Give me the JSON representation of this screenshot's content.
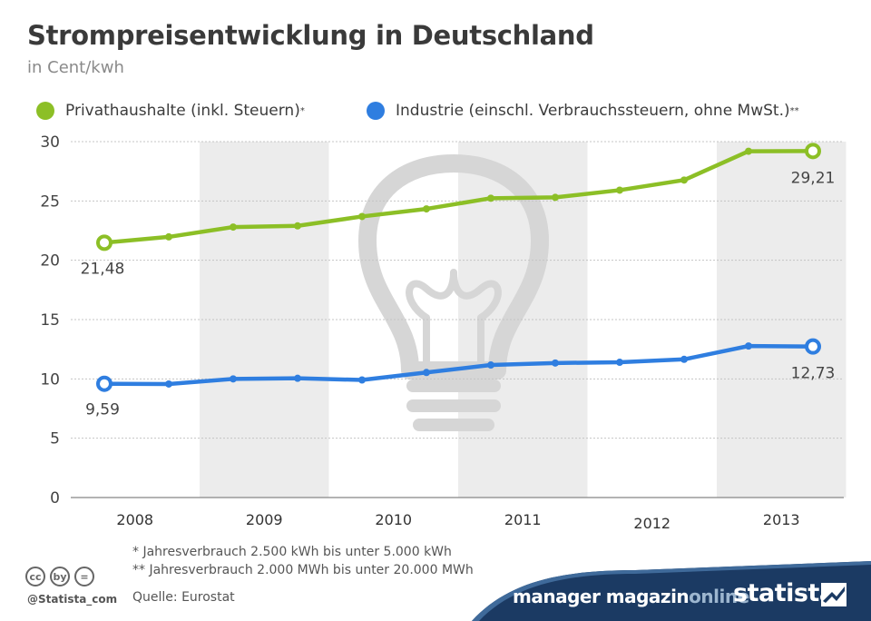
{
  "header": {
    "title": "Strompreisentwicklung in Deutschland",
    "subtitle": "in Cent/kwh"
  },
  "colors": {
    "green": "#8cbf26",
    "blue": "#2f7ee0",
    "band": "#ececec",
    "navy": "#1b3a63"
  },
  "legend": [
    {
      "label": "Privathaushalte (inkl. Steuern)",
      "mark": "*"
    },
    {
      "label": "Industrie (einschl. Verbrauchssteuern, ohne MwSt.)",
      "mark": "**"
    }
  ],
  "chart_data": {
    "type": "line",
    "title": "Strompreisentwicklung in Deutschland",
    "ylabel": "Cent/kwh",
    "ylim": [
      0,
      30
    ],
    "yticks": [
      "0",
      "5",
      "10",
      "15",
      "20",
      "25",
      "30"
    ],
    "years": [
      "2008",
      "2009",
      "2010",
      "2011",
      "2012",
      "2013"
    ],
    "series": [
      {
        "name": "Privathaushalte (inkl. Steuern)*",
        "values": [
          21.48,
          21.97,
          22.8,
          22.9,
          23.69,
          24.33,
          25.23,
          25.3,
          25.91,
          26.76,
          29.19,
          29.21
        ],
        "start_label": "21,48",
        "end_label": "29,21"
      },
      {
        "name": "Industrie (einschl. Verbrauchssteuern, ohne MwSt.)**",
        "values": [
          9.59,
          9.57,
          10.0,
          10.05,
          9.91,
          10.54,
          11.17,
          11.34,
          11.4,
          11.65,
          12.77,
          12.73
        ],
        "start_label": "9,59",
        "end_label": "12,73"
      }
    ]
  },
  "footnotes": {
    "note1": "* Jahresverbrauch 2.500 kWh bis unter 5.000 kWh",
    "note2": "** Jahresverbrauch 2.000 MWh bis unter 20.000 MWh",
    "source": "Quelle: Eurostat"
  },
  "footer": {
    "handle": "@Statista_com",
    "cc_icons": [
      "cc",
      "by",
      "="
    ],
    "partner_main": "manager magazin",
    "partner_suffix": "online",
    "brand": "statista"
  }
}
